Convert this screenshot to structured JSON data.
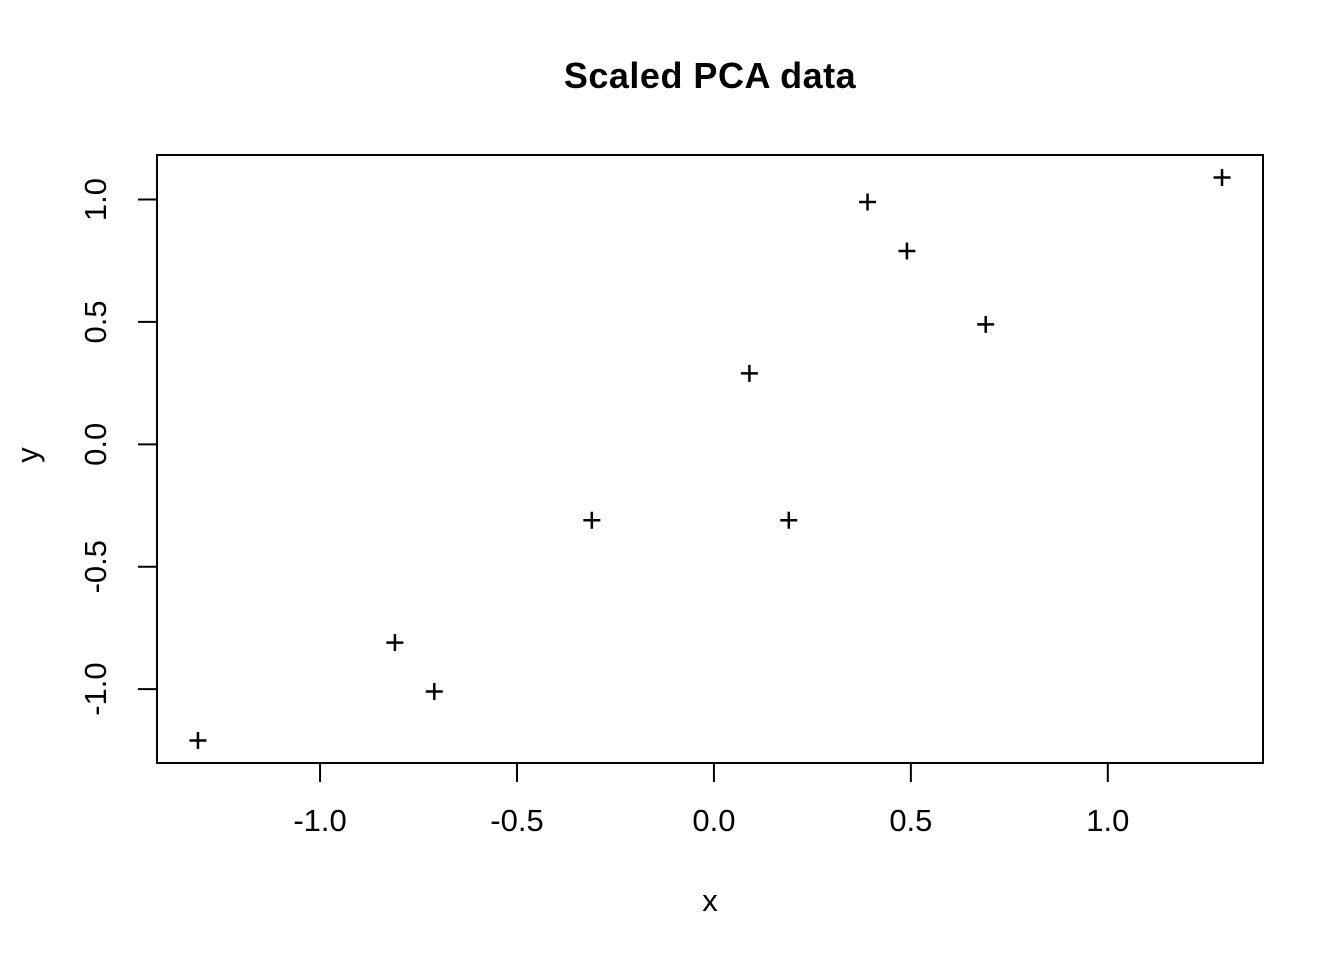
{
  "chart_data": {
    "type": "scatter",
    "title": "Scaled PCA data",
    "xlabel": "x",
    "ylabel": "y",
    "marker": "plus",
    "marker_color": "#000000",
    "axis_color": "#000000",
    "background_color": "#ffffff",
    "grid": false,
    "xlim": [
      -1.414,
      1.394
    ],
    "ylim": [
      -1.302,
      1.182
    ],
    "x_ticks": [
      -1.0,
      -0.5,
      0.0,
      0.5,
      1.0
    ],
    "y_ticks": [
      -1.0,
      -0.5,
      0.0,
      0.5,
      1.0
    ],
    "x_tick_labels": [
      "-1.0",
      "-0.5",
      "0.0",
      "0.5",
      "1.0"
    ],
    "y_tick_labels": [
      "-1.0",
      "-0.5",
      "0.0",
      "0.5",
      "1.0"
    ],
    "points": [
      {
        "x": 0.69,
        "y": 0.49
      },
      {
        "x": -1.31,
        "y": -1.21
      },
      {
        "x": 0.39,
        "y": 0.99
      },
      {
        "x": 0.09,
        "y": 0.29
      },
      {
        "x": 1.29,
        "y": 1.09
      },
      {
        "x": 0.49,
        "y": 0.79
      },
      {
        "x": 0.19,
        "y": -0.31
      },
      {
        "x": -0.81,
        "y": -0.81
      },
      {
        "x": -0.31,
        "y": -0.31
      },
      {
        "x": -0.71,
        "y": -1.01
      }
    ]
  }
}
